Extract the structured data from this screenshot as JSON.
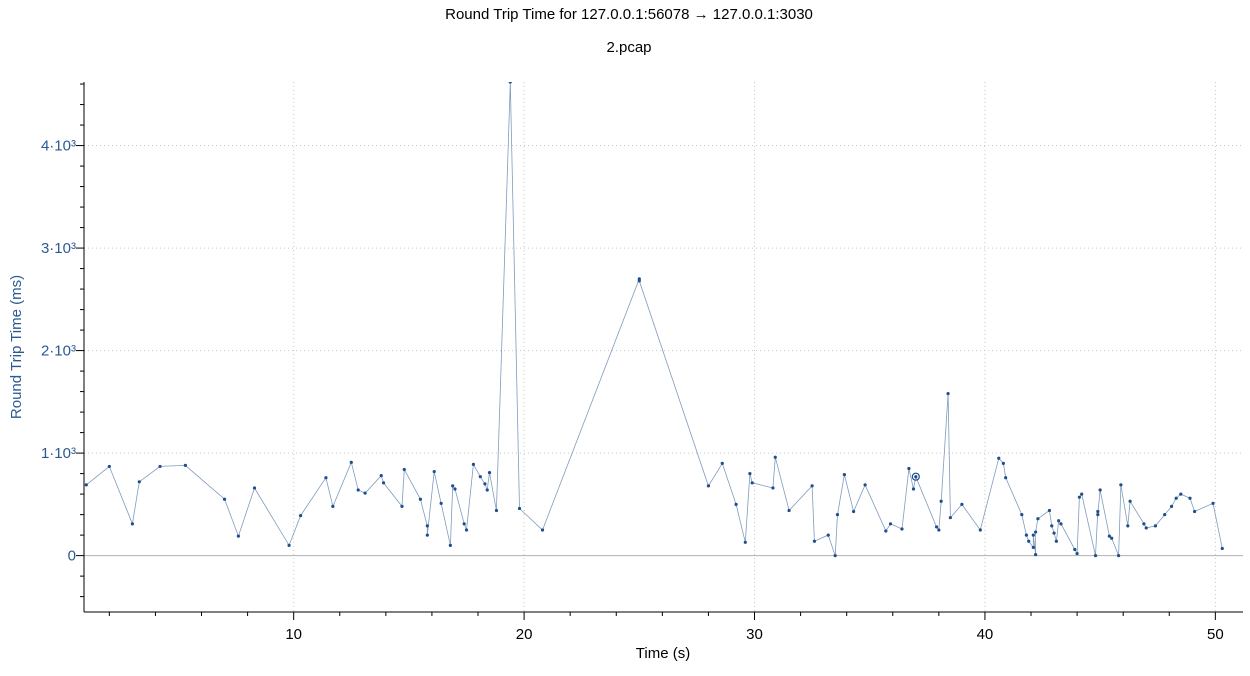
{
  "colors": {
    "series": "#1f4e8c",
    "series_line": "#7f9cbd",
    "y_axis_text": "#2a5a94",
    "background": "#ffffff"
  },
  "chart_data": {
    "type": "scatter",
    "title": "Round Trip Time for 127.0.0.1:56078 → 127.0.0.1:3030",
    "subtitle": "2.pcap",
    "xlabel": "Time (s)",
    "ylabel": "Round Trip Time (ms)",
    "xlim": [
      0.9,
      51.2
    ],
    "ylim": [
      -550,
      4620
    ],
    "x_ticks": [
      10,
      20,
      30,
      40,
      50
    ],
    "x_tick_labels": [
      "10",
      "20",
      "30",
      "40",
      "50"
    ],
    "y_ticks": [
      0,
      1000,
      2000,
      3000,
      4000
    ],
    "y_tick_labels": [
      "0",
      "1·10³",
      "2·10³",
      "3·10³",
      "4·10³"
    ],
    "grid": true,
    "connect_points": true,
    "highlighted_point": [
      37.0,
      770
    ],
    "series": [
      {
        "points": [
          [
            1.0,
            690
          ],
          [
            2.0,
            870
          ],
          [
            3.0,
            310
          ],
          [
            3.3,
            720
          ],
          [
            4.2,
            870
          ],
          [
            5.3,
            880
          ],
          [
            7.0,
            550
          ],
          [
            7.6,
            190
          ],
          [
            8.3,
            660
          ],
          [
            9.8,
            100
          ],
          [
            10.3,
            390
          ],
          [
            11.4,
            760
          ],
          [
            11.7,
            480
          ],
          [
            12.5,
            910
          ],
          [
            12.8,
            640
          ],
          [
            13.1,
            610
          ],
          [
            13.8,
            780
          ],
          [
            13.9,
            710
          ],
          [
            14.7,
            480
          ],
          [
            14.8,
            840
          ],
          [
            15.5,
            550
          ],
          [
            15.8,
            290
          ],
          [
            15.8,
            200
          ],
          [
            16.1,
            820
          ],
          [
            16.4,
            510
          ],
          [
            16.8,
            100
          ],
          [
            16.9,
            680
          ],
          [
            17.0,
            650
          ],
          [
            17.4,
            310
          ],
          [
            17.5,
            250
          ],
          [
            17.8,
            890
          ],
          [
            18.1,
            770
          ],
          [
            18.3,
            700
          ],
          [
            18.4,
            640
          ],
          [
            18.5,
            810
          ],
          [
            18.8,
            440
          ],
          [
            19.4,
            4620
          ],
          [
            19.8,
            460
          ],
          [
            20.8,
            250
          ],
          [
            25.0,
            2700
          ],
          [
            25.0,
            2680
          ],
          [
            28.0,
            680
          ],
          [
            28.6,
            900
          ],
          [
            29.2,
            500
          ],
          [
            29.6,
            130
          ],
          [
            29.8,
            800
          ],
          [
            29.9,
            710
          ],
          [
            30.8,
            660
          ],
          [
            30.9,
            960
          ],
          [
            31.5,
            440
          ],
          [
            32.5,
            680
          ],
          [
            32.6,
            140
          ],
          [
            33.2,
            200
          ],
          [
            33.5,
            0
          ],
          [
            33.6,
            400
          ],
          [
            33.9,
            790
          ],
          [
            34.3,
            430
          ],
          [
            34.8,
            690
          ],
          [
            35.7,
            240
          ],
          [
            35.9,
            310
          ],
          [
            36.4,
            260
          ],
          [
            36.7,
            850
          ],
          [
            36.9,
            650
          ],
          [
            37.0,
            770
          ],
          [
            37.9,
            280
          ],
          [
            38.0,
            250
          ],
          [
            38.1,
            530
          ],
          [
            38.4,
            1580
          ],
          [
            38.5,
            370
          ],
          [
            39.0,
            500
          ],
          [
            39.8,
            250
          ],
          [
            40.6,
            950
          ],
          [
            40.8,
            900
          ],
          [
            40.9,
            760
          ],
          [
            41.6,
            400
          ],
          [
            41.8,
            200
          ],
          [
            41.9,
            140
          ],
          [
            42.1,
            80
          ],
          [
            42.1,
            200
          ],
          [
            42.2,
            10
          ],
          [
            42.2,
            230
          ],
          [
            42.3,
            360
          ],
          [
            42.8,
            440
          ],
          [
            42.9,
            290
          ],
          [
            43.0,
            220
          ],
          [
            43.1,
            140
          ],
          [
            43.2,
            340
          ],
          [
            43.3,
            310
          ],
          [
            43.9,
            60
          ],
          [
            44.0,
            20
          ],
          [
            44.1,
            570
          ],
          [
            44.2,
            600
          ],
          [
            44.8,
            0
          ],
          [
            44.9,
            430
          ],
          [
            44.9,
            400
          ],
          [
            45.0,
            640
          ],
          [
            45.4,
            190
          ],
          [
            45.5,
            170
          ],
          [
            45.8,
            0
          ],
          [
            45.9,
            690
          ],
          [
            46.2,
            290
          ],
          [
            46.3,
            530
          ],
          [
            46.9,
            310
          ],
          [
            47.0,
            270
          ],
          [
            47.4,
            290
          ],
          [
            47.8,
            400
          ],
          [
            48.1,
            480
          ],
          [
            48.3,
            560
          ],
          [
            48.5,
            600
          ],
          [
            48.9,
            560
          ],
          [
            49.1,
            430
          ],
          [
            49.9,
            510
          ],
          [
            50.3,
            70
          ]
        ]
      }
    ]
  }
}
